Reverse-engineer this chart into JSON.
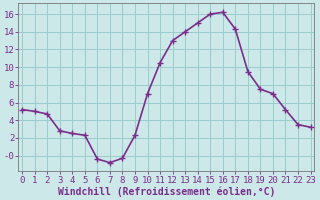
{
  "x": [
    0,
    1,
    2,
    3,
    4,
    5,
    6,
    7,
    8,
    9,
    10,
    11,
    12,
    13,
    14,
    15,
    16,
    17,
    18,
    19,
    20,
    21,
    22,
    23
  ],
  "y": [
    5.2,
    5.0,
    4.7,
    2.8,
    2.5,
    2.3,
    -0.4,
    -0.8,
    -0.3,
    2.3,
    7.0,
    10.5,
    13.0,
    14.0,
    15.0,
    16.0,
    16.2,
    14.3,
    9.5,
    7.5,
    7.0,
    5.2,
    3.5,
    3.2
  ],
  "line_color": "#7b2d8b",
  "marker": "+",
  "marker_size": 4,
  "marker_lw": 1.0,
  "bg_color": "#cce8e8",
  "grid_color": "#99cccc",
  "xlabel": "Windchill (Refroidissement éolien,°C)",
  "xlabel_fontsize": 7,
  "ylabel_ticks": [
    0,
    2,
    4,
    6,
    8,
    10,
    12,
    14,
    16
  ],
  "ytick_labels": [
    "-0",
    "2",
    "4",
    "6",
    "8",
    "10",
    "12",
    "14",
    "16"
  ],
  "xtick_labels": [
    "0",
    "1",
    "2",
    "3",
    "4",
    "5",
    "6",
    "7",
    "8",
    "9",
    "10",
    "11",
    "12",
    "13",
    "14",
    "15",
    "16",
    "17",
    "18",
    "19",
    "20",
    "21",
    "22",
    "23"
  ],
  "ylim": [
    -1.8,
    17.2
  ],
  "xlim": [
    -0.3,
    23.3
  ],
  "tick_fontsize": 6.5,
  "line_width": 1.2
}
